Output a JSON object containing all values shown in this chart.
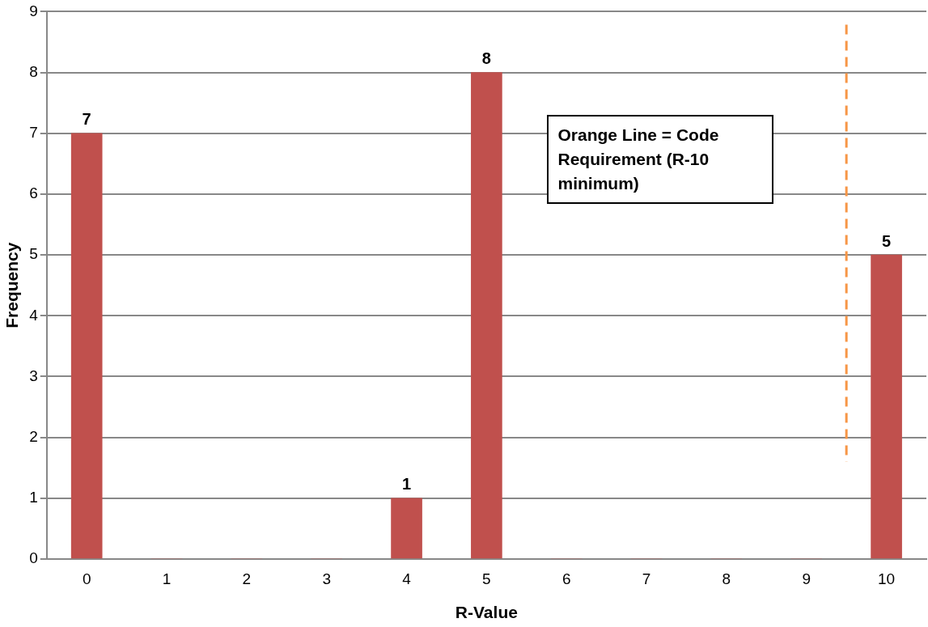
{
  "chart_data": {
    "type": "bar",
    "xlabel": "R-Value",
    "ylabel": "Frequency",
    "x": [
      0,
      1,
      2,
      3,
      4,
      5,
      6,
      7,
      8,
      9,
      10
    ],
    "values": [
      7,
      0,
      0,
      0,
      1,
      8,
      0,
      0,
      0,
      0,
      5
    ],
    "value_labels": [
      "7",
      null,
      null,
      null,
      "1",
      "8",
      null,
      null,
      null,
      null,
      "5"
    ],
    "color": "#c0504d",
    "xlim": [
      -0.5,
      10.5
    ],
    "xticks": [
      0,
      1,
      2,
      3,
      4,
      5,
      6,
      7,
      8,
      9,
      10
    ],
    "ylim": [
      0,
      9
    ],
    "yticks": [
      0,
      1,
      2,
      3,
      4,
      5,
      6,
      7,
      8,
      9
    ],
    "grid": "y",
    "legend": false,
    "ref_lines": [
      {
        "axis": "x",
        "value": 9.5,
        "color": "#f79646",
        "line_style": "dashed"
      }
    ],
    "annotations": [
      "Orange Line = Code Requirement (R-10 minimum)"
    ]
  }
}
